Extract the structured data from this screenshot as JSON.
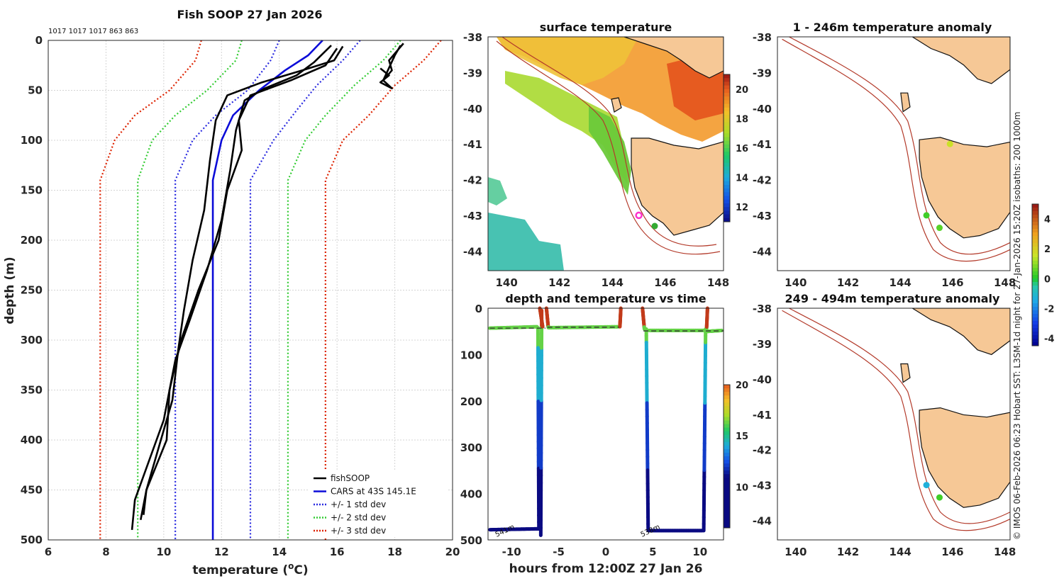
{
  "chart_data": [
    {
      "type": "line",
      "title": "Fish SOOP 27 Jan 2026",
      "xlabel": "temperature (",
      "xlabel_sup": "o",
      "xlabel_end": "C)",
      "ylabel": "depth (m)",
      "xlim": [
        6,
        20
      ],
      "ylim": [
        0,
        500
      ],
      "xticks": [
        6,
        8,
        10,
        12,
        14,
        16,
        18,
        20
      ],
      "yticks": [
        0,
        50,
        100,
        150,
        200,
        250,
        300,
        350,
        400,
        450,
        500
      ],
      "header": "1017 1017 1017 863 863",
      "legend": [
        "fishSOOP",
        "CARS at 43S 145.1E",
        "+/- 1 std dev",
        "+/- 2 std dev",
        "+/- 3 std dev"
      ],
      "legend_colors": [
        "#000000",
        "#0b0bd8",
        "#2a2ae0",
        "#33cc33",
        "#dd2200"
      ],
      "series": [
        {
          "name": "CARS at 43S 145.1E",
          "color": "#0b0bd8",
          "points": [
            [
              15.5,
              0
            ],
            [
              15.0,
              15
            ],
            [
              14.2,
              30
            ],
            [
              13.3,
              50
            ],
            [
              12.4,
              75
            ],
            [
              12.0,
              100
            ],
            [
              11.7,
              140
            ],
            [
              11.7,
              500
            ]
          ]
        },
        {
          "name": "+/- 1 std dev (low)",
          "color": "#2a2ae0",
          "points": [
            [
              14.0,
              0
            ],
            [
              13.7,
              20
            ],
            [
              12.9,
              50
            ],
            [
              11.8,
              75
            ],
            [
              11.0,
              100
            ],
            [
              10.4,
              140
            ],
            [
              10.4,
              500
            ]
          ]
        },
        {
          "name": "+/- 1 std dev (high)",
          "color": "#2a2ae0",
          "points": [
            [
              16.8,
              0
            ],
            [
              16.2,
              20
            ],
            [
              15.3,
              45
            ],
            [
              14.6,
              70
            ],
            [
              13.8,
              100
            ],
            [
              13.0,
              140
            ],
            [
              13.0,
              500
            ]
          ]
        },
        {
          "name": "+/- 2 std dev (low)",
          "color": "#33cc33",
          "points": [
            [
              12.7,
              0
            ],
            [
              12.5,
              20
            ],
            [
              11.5,
              50
            ],
            [
              10.4,
              75
            ],
            [
              9.6,
              100
            ],
            [
              9.1,
              140
            ],
            [
              9.1,
              500
            ]
          ]
        },
        {
          "name": "+/- 2 std dev (high)",
          "color": "#33cc33",
          "points": [
            [
              18.2,
              0
            ],
            [
              17.6,
              20
            ],
            [
              16.6,
              45
            ],
            [
              15.6,
              75
            ],
            [
              14.9,
              100
            ],
            [
              14.3,
              140
            ],
            [
              14.3,
              500
            ]
          ]
        },
        {
          "name": "+/- 3 std dev (low)",
          "color": "#dd2200",
          "points": [
            [
              11.3,
              0
            ],
            [
              11.1,
              20
            ],
            [
              10.2,
              50
            ],
            [
              9.0,
              75
            ],
            [
              8.3,
              100
            ],
            [
              7.8,
              140
            ],
            [
              7.8,
              500
            ]
          ]
        },
        {
          "name": "+/- 3 std dev (high)",
          "color": "#dd2200",
          "points": [
            [
              19.6,
              0
            ],
            [
              19.0,
              20
            ],
            [
              18.0,
              45
            ],
            [
              17.1,
              75
            ],
            [
              16.2,
              100
            ],
            [
              15.6,
              140
            ],
            [
              15.6,
              500
            ]
          ]
        },
        {
          "name": "fishSOOP 1",
          "color": "#000000",
          "points": [
            [
              16.0,
              8
            ],
            [
              15.6,
              25
            ],
            [
              14.4,
              40
            ],
            [
              13.0,
              55
            ],
            [
              12.6,
              80
            ],
            [
              12.7,
              110
            ],
            [
              12.2,
              150
            ],
            [
              11.9,
              200
            ],
            [
              11.2,
              250
            ],
            [
              10.6,
              300
            ],
            [
              10.2,
              350
            ],
            [
              10.1,
              400
            ],
            [
              9.4,
              450
            ],
            [
              9.3,
              475
            ]
          ]
        },
        {
          "name": "fishSOOP 2",
          "color": "#000000",
          "points": [
            [
              15.8,
              5
            ],
            [
              15.2,
              22
            ],
            [
              14.6,
              35
            ],
            [
              13.5,
              48
            ],
            [
              12.8,
              60
            ],
            [
              12.5,
              90
            ],
            [
              12.3,
              130
            ],
            [
              12.0,
              180
            ],
            [
              11.5,
              230
            ],
            [
              10.9,
              280
            ],
            [
              10.4,
              320
            ],
            [
              10.0,
              380
            ],
            [
              9.5,
              420
            ],
            [
              9.0,
              460
            ],
            [
              8.9,
              490
            ]
          ]
        },
        {
          "name": "fishSOOP 3",
          "color": "#000000",
          "points": [
            [
              16.2,
              6
            ],
            [
              15.9,
              20
            ],
            [
              14.8,
              30
            ],
            [
              13.4,
              42
            ],
            [
              12.2,
              55
            ],
            [
              11.8,
              80
            ],
            [
              11.6,
              120
            ],
            [
              11.4,
              170
            ],
            [
              11.0,
              220
            ],
            [
              10.7,
              270
            ],
            [
              10.5,
              310
            ],
            [
              10.3,
              360
            ],
            [
              9.8,
              410
            ],
            [
              9.4,
              450
            ],
            [
              9.2,
              480
            ]
          ]
        },
        {
          "name": "fishSOOP 4",
          "color": "#000000",
          "points": [
            [
              18.3,
              3
            ],
            [
              17.8,
              20
            ],
            [
              17.9,
              30
            ],
            [
              17.6,
              40
            ],
            [
              18.0,
              15
            ],
            [
              18.2,
              5
            ]
          ]
        },
        {
          "name": "fishSOOP 5",
          "color": "#000000",
          "points": [
            [
              17.5,
              28
            ],
            [
              17.8,
              35
            ],
            [
              17.5,
              42
            ],
            [
              17.9,
              48
            ],
            [
              17.6,
              40
            ]
          ]
        }
      ]
    },
    {
      "type": "heatmap",
      "title": "surface temperature",
      "xticks": [
        140,
        142,
        144,
        146,
        148
      ],
      "yticks": [
        -38,
        -39,
        -40,
        -41,
        -42,
        -43,
        -44
      ],
      "colorbar_ticks": [
        12,
        14,
        16,
        18,
        20
      ],
      "colorbar_range": [
        11,
        21
      ],
      "markers": [
        {
          "lon": 145.0,
          "lat": -43.0,
          "color": "#ff33cc"
        },
        {
          "lon": 145.6,
          "lat": -43.3,
          "color": "#33aa33"
        }
      ]
    },
    {
      "type": "scatter",
      "title": "depth and temperature vs time",
      "xlabel": "hours from 12:00Z 27 Jan 26",
      "xticks": [
        -10,
        -5,
        0,
        5,
        10
      ],
      "yticks": [
        0,
        100,
        200,
        300,
        400,
        500
      ],
      "xlim": [
        -12.5,
        12.5
      ],
      "ylim": [
        0,
        500
      ],
      "colorbar_ticks": [
        10,
        15,
        20
      ],
      "colorbar_range": [
        6,
        20
      ],
      "depth_labels": [
        "541m",
        "538m"
      ]
    },
    {
      "type": "heatmap",
      "title": "1 - 246m temperature anomaly",
      "xticks": [
        140,
        142,
        144,
        146,
        148
      ],
      "yticks": [
        -38,
        -39,
        -40,
        -41,
        -42,
        -43,
        -44
      ],
      "markers": [
        {
          "lon": 145.0,
          "lat": -43.0,
          "value": 0.3
        },
        {
          "lon": 145.5,
          "lat": -43.35,
          "value": 0.5
        },
        {
          "lon": 145.9,
          "lat": -41.0,
          "value": 1.6
        }
      ]
    },
    {
      "type": "heatmap",
      "title": "249 - 494m temperature anomaly",
      "xticks": [
        140,
        142,
        144,
        146,
        148
      ],
      "yticks": [
        -38,
        -39,
        -40,
        -41,
        -42,
        -43,
        -44
      ],
      "colorbar_ticks": [
        -4,
        -2,
        0,
        2,
        4
      ],
      "colorbar_range": [
        -4.5,
        5
      ],
      "markers": [
        {
          "lon": 145.0,
          "lat": -43.0,
          "value": -1.3
        },
        {
          "lon": 145.5,
          "lat": -43.35,
          "value": 0.3
        }
      ]
    }
  ],
  "credit": "© IMOS 06-Feb-2026 06:23 Hobart SST: L3SM-1d night for 27-Jan-2026 15:20Z isobaths: 200  1000m"
}
